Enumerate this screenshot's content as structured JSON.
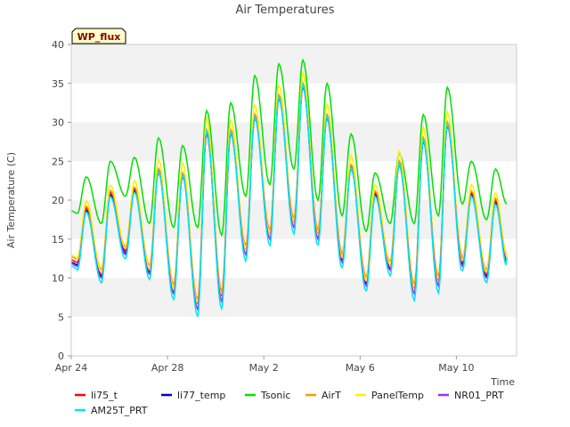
{
  "chart_data": {
    "type": "line",
    "title": "Air Temperatures",
    "xlabel": "Time",
    "ylabel": "Air Temperature (C)",
    "badge": "WP_flux",
    "ylim": [
      0,
      40
    ],
    "yticks": [
      0,
      5,
      10,
      15,
      20,
      25,
      30,
      35,
      40
    ],
    "xlim": [
      "2024-04-24",
      "2024-05-12T12:00"
    ],
    "xticks": [
      {
        "date": "2024-04-24",
        "label": "Apr 24"
      },
      {
        "date": "2024-04-28",
        "label": "Apr 28"
      },
      {
        "date": "2024-05-02",
        "label": "May 2"
      },
      {
        "date": "2024-05-06",
        "label": "May 6"
      },
      {
        "date": "2024-05-10",
        "label": "May 10"
      }
    ],
    "grid": "horizontal bands",
    "legend_position": "bottom",
    "daily_min_max": {
      "dates": [
        "2024-04-24",
        "2024-04-25",
        "2024-04-26",
        "2024-04-27",
        "2024-04-28",
        "2024-04-29",
        "2024-04-30",
        "2024-05-01",
        "2024-05-02",
        "2024-05-03",
        "2024-05-04",
        "2024-05-05",
        "2024-05-06",
        "2024-05-07",
        "2024-05-08",
        "2024-05-09",
        "2024-05-10",
        "2024-05-11"
      ],
      "min": [
        12.0,
        10.5,
        13.5,
        11.0,
        8.5,
        6.5,
        7.5,
        13.5,
        15.5,
        17.0,
        15.5,
        12.5,
        9.5,
        11.5,
        8.5,
        9.5,
        12.0,
        10.5
      ],
      "max": [
        19.0,
        21.0,
        21.5,
        24.0,
        23.5,
        29.0,
        29.0,
        31.0,
        33.5,
        35.0,
        31.0,
        24.5,
        21.0,
        25.0,
        28.0,
        30.0,
        21.0,
        20.0
      ]
    },
    "tsonic_daily_min_max": {
      "min": [
        18.3,
        17.0,
        20.5,
        17.0,
        16.5,
        16.5,
        15.5,
        20.5,
        22.0,
        24.0,
        20.0,
        18.0,
        16.0,
        17.0,
        17.0,
        18.0,
        19.5,
        17.5
      ],
      "max": [
        23.0,
        25.0,
        25.5,
        28.0,
        27.0,
        31.5,
        32.5,
        36.0,
        37.5,
        38.0,
        35.0,
        28.5,
        23.5,
        26.0,
        31.0,
        34.5,
        25.0,
        24.0
      ]
    },
    "series": [
      {
        "name": "li75_t",
        "color": "#ff0000",
        "offset": 0.0,
        "scale": 1.0
      },
      {
        "name": "li77_temp",
        "color": "#0000cc",
        "offset": -0.3,
        "scale": 1.0
      },
      {
        "name": "Tsonic",
        "color": "#00e000",
        "offset": 0.0,
        "scale": 1.0
      },
      {
        "name": "AirT",
        "color": "#ff9900",
        "offset": 0.4,
        "scale": 0.96
      },
      {
        "name": "PanelTemp",
        "color": "#ffee00",
        "offset": 0.6,
        "scale": 1.08
      },
      {
        "name": "NR01_PRT",
        "color": "#9933ff",
        "offset": -0.5,
        "scale": 1.0
      },
      {
        "name": "AM25T_PRT",
        "color": "#00e5ee",
        "offset": -0.8,
        "scale": 1.06
      }
    ]
  }
}
